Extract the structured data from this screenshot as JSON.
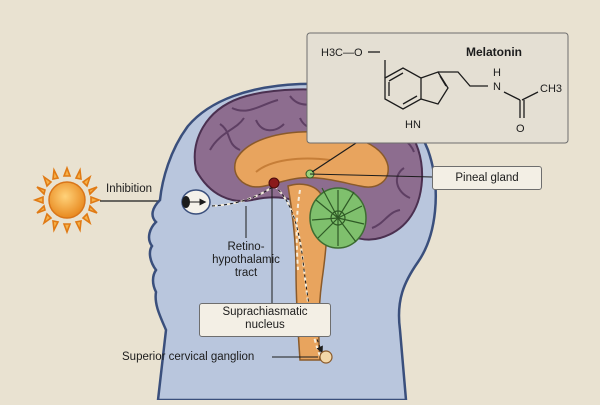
{
  "labels": {
    "inhibition": "Inhibition",
    "retino_line1": "Retino-",
    "retino_line2": "hypothalamic",
    "retino_line3": "tract",
    "scn_line1": "Suprachiasmatic",
    "scn_line2": "nucleus",
    "pineal": "Pineal gland",
    "scg": "Superior cervical ganglion"
  },
  "molecule": {
    "title": "Melatonin",
    "methoxy": "H3C—O",
    "nh": "N",
    "h_amide": "H",
    "hn_ring": "HN",
    "ch3": "CH3",
    "carbonyl_o": "O"
  },
  "colors": {
    "background": "#e9e2d1",
    "head_fill": "#b9c6dd",
    "head_outline": "#3a4f7c",
    "brain_fill": "#8d6d8f",
    "brain_gyri": "#5e3f63",
    "inner_brain": "#e8a45e",
    "cerebellum": "#7fc06d",
    "sun": "#f0a33c",
    "scn_dot": "#8b1a1a"
  }
}
